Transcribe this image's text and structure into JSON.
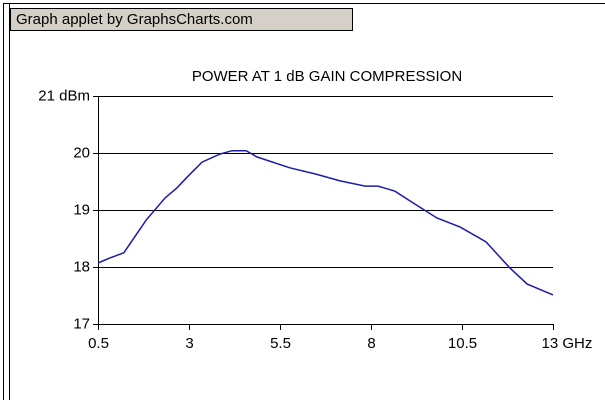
{
  "applet_label": "Graph applet by GraphsCharts.com",
  "chart_data": {
    "type": "line",
    "title": "POWER AT 1 dB GAIN COMPRESSION",
    "x": [
      0.5,
      0.83,
      1.21,
      1.82,
      2.34,
      2.67,
      3.0,
      3.36,
      3.85,
      4.18,
      4.57,
      4.87,
      5.77,
      6.49,
      7.15,
      7.84,
      8.19,
      8.66,
      9.07,
      9.81,
      10.45,
      11.16,
      11.82,
      12.29,
      13.0
    ],
    "series": [
      {
        "name": "Power at 1 dB gain compression",
        "color": "#1c1caa",
        "values": [
          18.07,
          18.16,
          18.25,
          18.82,
          19.21,
          19.39,
          19.61,
          19.84,
          19.98,
          20.04,
          20.04,
          19.93,
          19.74,
          19.63,
          19.51,
          19.42,
          19.42,
          19.33,
          19.16,
          18.86,
          18.7,
          18.44,
          17.98,
          17.7,
          17.51
        ]
      }
    ],
    "xlim": [
      0.5,
      13
    ],
    "xticks": [
      0.5,
      3,
      5.5,
      8,
      10.5,
      {
        "value": 13,
        "label": "13 GHz"
      }
    ],
    "ylim": [
      17,
      21
    ],
    "yticks": [
      17,
      18,
      19,
      20,
      {
        "value": 21,
        "label": "21 dBm"
      }
    ],
    "grid": true
  }
}
